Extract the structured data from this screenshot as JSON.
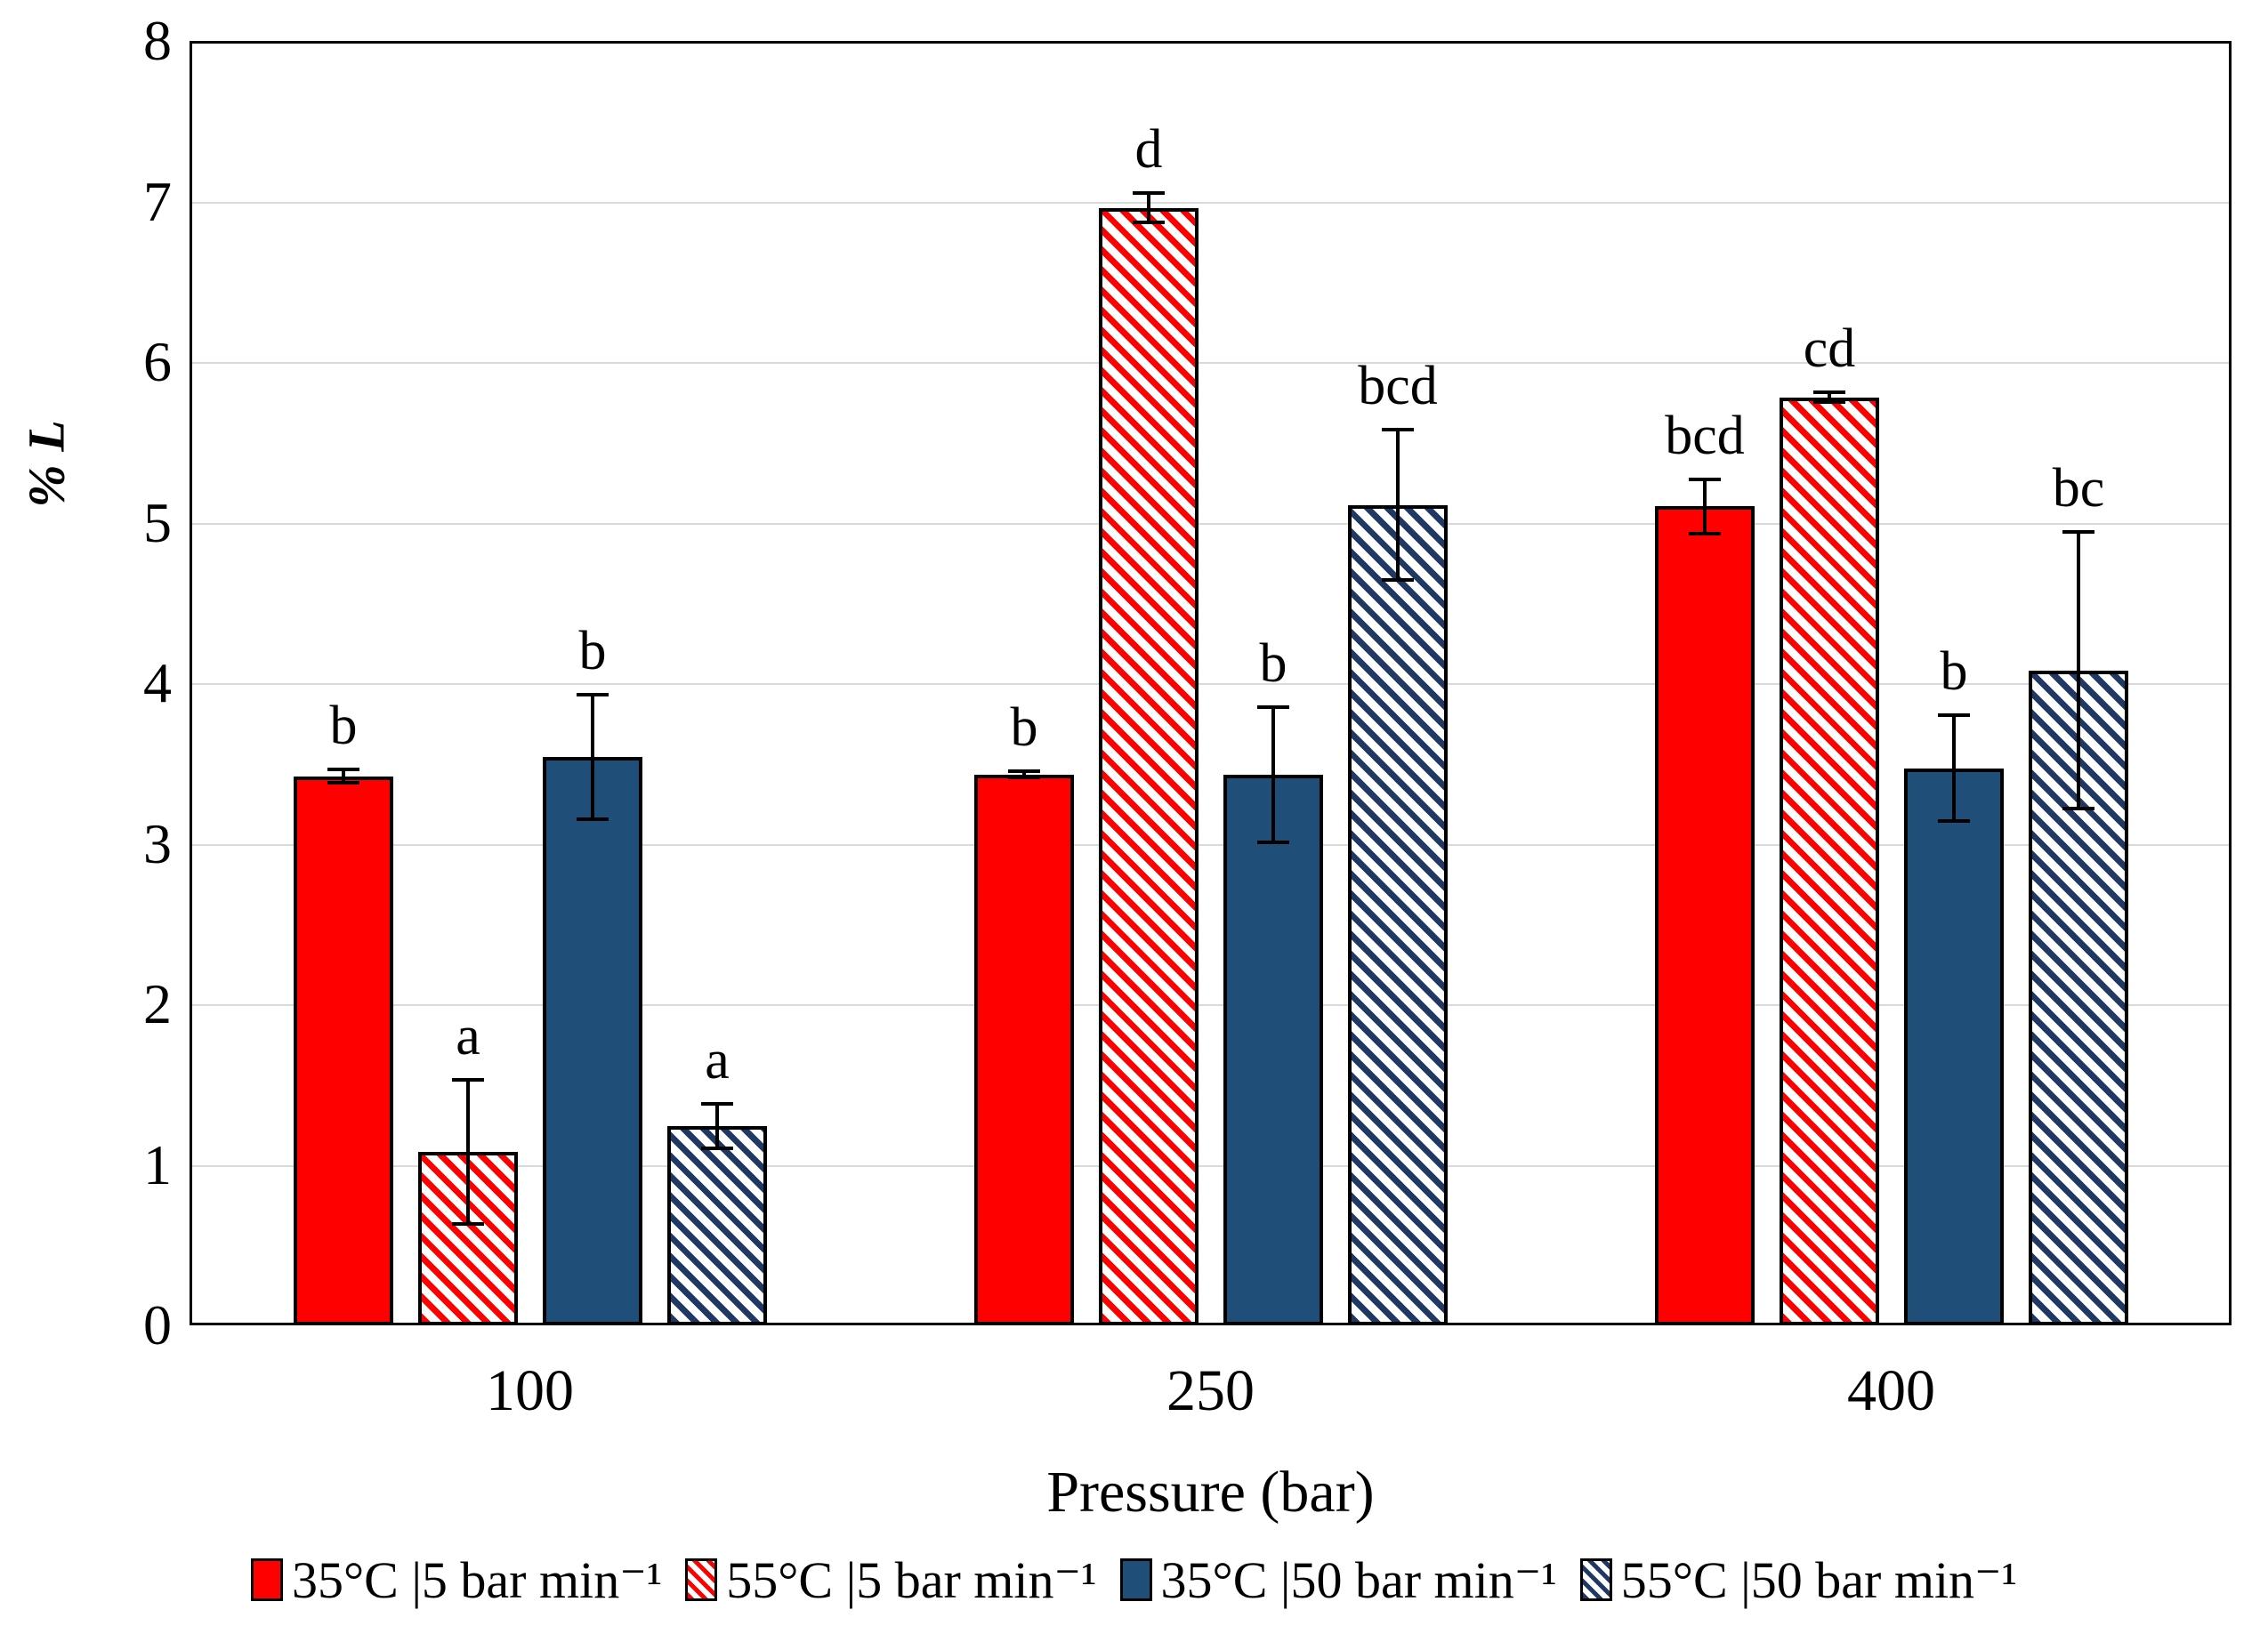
{
  "chart_data": {
    "type": "bar",
    "title": "",
    "xlabel": "Pressure (bar)",
    "ylabel": "% L",
    "categories": [
      "100",
      "250",
      "400"
    ],
    "series": [
      {
        "name": "35°C |5 bar min⁻¹",
        "style": "solid",
        "color": "#FF0000",
        "values": [
          3.42,
          3.43,
          5.1
        ],
        "errors": [
          0.04,
          0.02,
          0.17
        ],
        "letters": [
          "b",
          "b",
          "bcd"
        ]
      },
      {
        "name": "55°C |5 bar min⁻¹",
        "style": "hatch",
        "color": "#FF0000",
        "values": [
          1.08,
          6.96,
          5.78
        ],
        "errors": [
          0.45,
          0.09,
          0.03
        ],
        "letters": [
          "a",
          "d",
          "cd"
        ]
      },
      {
        "name": "35°C |50 bar min⁻¹",
        "style": "solid",
        "color": "#1F4E79",
        "values": [
          3.54,
          3.43,
          3.47
        ],
        "errors": [
          0.39,
          0.42,
          0.33
        ],
        "letters": [
          "b",
          "b",
          "b"
        ]
      },
      {
        "name": "55°C |50 bar min⁻¹",
        "style": "hatch",
        "color": "#1F3864",
        "values": [
          1.24,
          5.11,
          4.08
        ],
        "errors": [
          0.14,
          0.47,
          0.86
        ],
        "letters": [
          "a",
          "bcd",
          "bc"
        ]
      }
    ],
    "ylim": [
      0,
      8
    ],
    "yticks": [
      0,
      1,
      2,
      3,
      4,
      5,
      6,
      7,
      8
    ],
    "grid": "horizontal",
    "grid_color": "#D9D9D9",
    "axis_color": "#000000",
    "legend_position": "bottom"
  }
}
